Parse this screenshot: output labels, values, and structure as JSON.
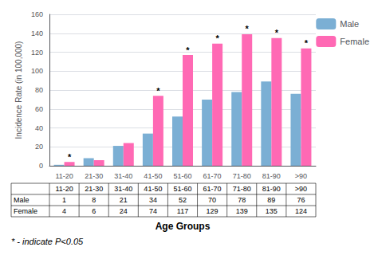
{
  "chart_data": {
    "type": "bar",
    "categories": [
      "11-20",
      "21-30",
      "31-40",
      "41-50",
      "51-60",
      "61-70",
      "71-80",
      "81-90",
      ">90"
    ],
    "series": [
      {
        "name": "Male",
        "color": "#7BAFD4",
        "values": [
          1,
          8,
          21,
          34,
          52,
          70,
          78,
          89,
          76
        ]
      },
      {
        "name": "Female",
        "color": "#FF69B4",
        "values": [
          4,
          6,
          24,
          74,
          117,
          129,
          139,
          135,
          124
        ]
      }
    ],
    "ylim": [
      0,
      160
    ],
    "yticks": [
      0,
      20,
      40,
      60,
      80,
      100,
      120,
      140,
      160
    ],
    "ylabel": "Incidence Rate (in 100,000)",
    "xlabel": "Age Groups",
    "grid": true,
    "legend": "right",
    "annotations": [
      {
        "series": "Female",
        "category": "11-20",
        "text": "*"
      },
      {
        "series": "Female",
        "category": "41-50",
        "text": "*"
      },
      {
        "series": "Female",
        "category": "51-60",
        "text": "*"
      },
      {
        "series": "Female",
        "category": "61-70",
        "text": "*"
      },
      {
        "series": "Female",
        "category": "71-80",
        "text": "*"
      },
      {
        "series": "Female",
        "category": "81-90",
        "text": "*"
      },
      {
        "series": "Female",
        "category": ">90",
        "text": "*"
      }
    ],
    "table_rows": [
      "Male",
      "Female"
    ],
    "note": "* - indicate P<0.05"
  }
}
